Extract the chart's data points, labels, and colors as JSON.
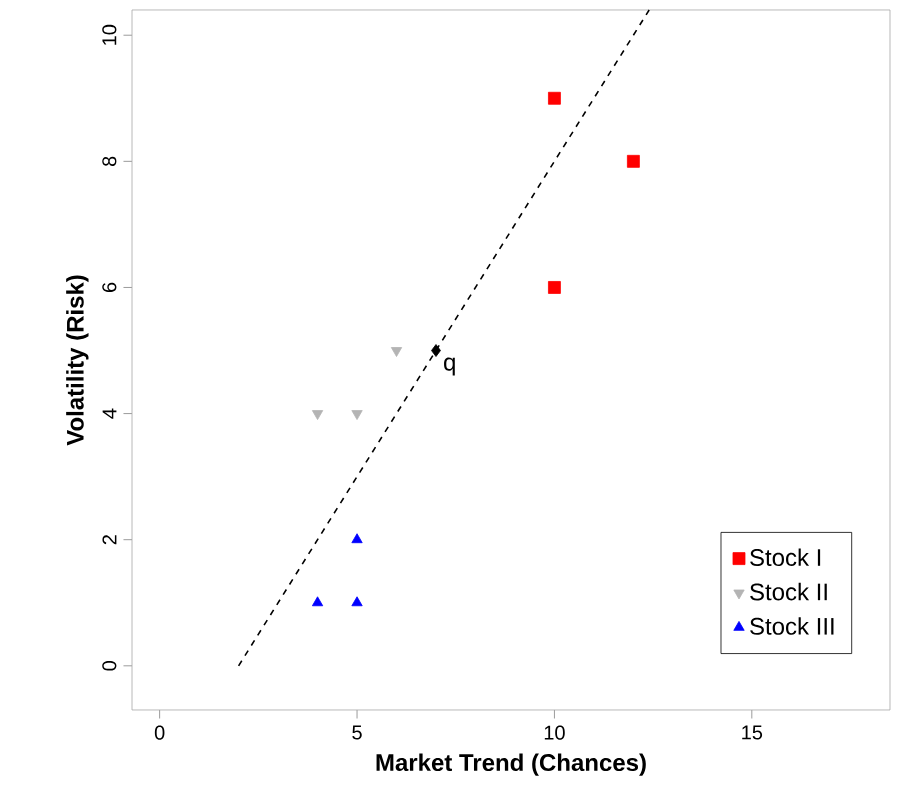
{
  "chart_data": {
    "type": "scatter",
    "xlabel": "Market Trend (Chances)",
    "ylabel": "Volatility (Risk)",
    "xlim": [
      -0.7,
      18.5
    ],
    "ylim": [
      -0.7,
      10.4
    ],
    "xticks": [
      0,
      5,
      10,
      15
    ],
    "yticks": [
      0,
      2,
      4,
      6,
      8,
      10
    ],
    "grid": false,
    "legend": "bottom right",
    "series": [
      {
        "name": "Stock I",
        "color": "#ff0000",
        "marker": "square",
        "x": [
          10,
          12,
          10
        ],
        "values": [
          9,
          8,
          6
        ]
      },
      {
        "name": "Stock II",
        "color": "#b4b4b4",
        "marker": "triangle-down",
        "x": [
          4,
          5,
          6
        ],
        "values": [
          4,
          4,
          5
        ]
      },
      {
        "name": "Stock III",
        "color": "#0000ff",
        "marker": "triangle",
        "x": [
          4,
          5,
          5
        ],
        "values": [
          1,
          1,
          2
        ]
      },
      {
        "type": "line",
        "color": "#000000",
        "line_style": "dashed",
        "marker": "none",
        "x": [
          2,
          12.4
        ],
        "values": [
          0,
          10.4
        ]
      },
      {
        "color": "#000000",
        "marker": "diamond",
        "x": [
          7
        ],
        "values": [
          5
        ]
      }
    ],
    "annotations": [
      {
        "text": "q",
        "x": 7,
        "y": 5
      }
    ]
  }
}
